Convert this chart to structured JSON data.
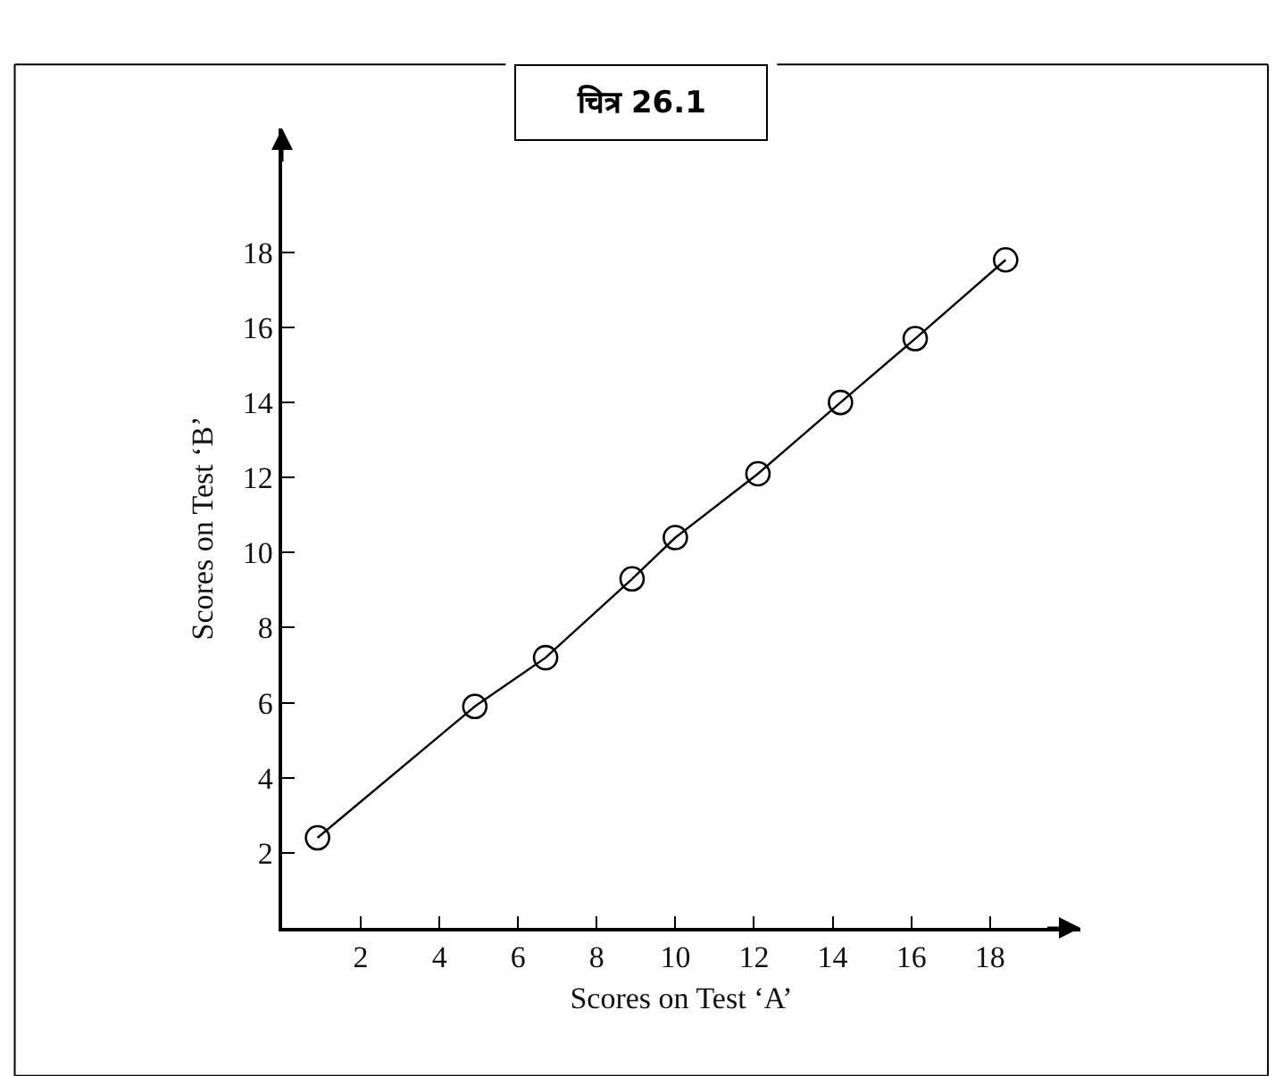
{
  "chart_data": {
    "type": "line",
    "title": "चित्र 26.1",
    "xlabel": "Scores on Test ‘A’",
    "ylabel": "Scores on Test ‘B’",
    "x": [
      0.9,
      4.9,
      6.7,
      8.9,
      10.0,
      12.1,
      14.2,
      16.1,
      18.4
    ],
    "series": [
      {
        "color": "#000000",
        "values": [
          2.4,
          5.9,
          7.2,
          9.3,
          10.4,
          12.1,
          14.0,
          15.7,
          17.8
        ]
      }
    ],
    "xlim": [
      0,
      20.3
    ],
    "ylim": [
      0,
      21.3
    ],
    "xticks": [
      2,
      4,
      6,
      8,
      10,
      12,
      14,
      16,
      18
    ],
    "yticks": [
      2,
      4,
      6,
      8,
      10,
      12,
      14,
      16,
      18
    ],
    "legend": false,
    "marker": "circle",
    "line_style": "solid"
  }
}
